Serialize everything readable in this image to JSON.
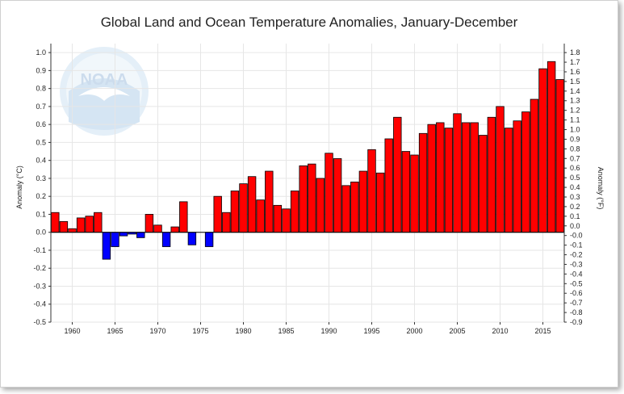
{
  "chart_data": {
    "type": "bar",
    "title": "Global Land and Ocean Temperature Anomalies, January-December",
    "ylabel_left": "Anomaly (°C)",
    "ylabel_right": "Anomaly (°F)",
    "ylim_left": [
      -0.5,
      1.05
    ],
    "ylim_right": [
      -0.9,
      1.89
    ],
    "left_ticks": [
      "1.0",
      "0.9",
      "0.8",
      "0.7",
      "0.6",
      "0.5",
      "0.4",
      "0.3",
      "0.2",
      "0.1",
      "0.0",
      "-0.1",
      "-0.2",
      "-0.3",
      "-0.4",
      "-0.5"
    ],
    "right_ticks": [
      "1.8",
      "1.7",
      "1.6",
      "1.5",
      "1.4",
      "1.3",
      "1.2",
      "1.1",
      "1.0",
      "0.9",
      "0.8",
      "0.7",
      "0.6",
      "0.5",
      "0.4",
      "0.3",
      "0.2",
      "0.1",
      "0.0",
      "-0.0",
      "-0.1",
      "-0.2",
      "-0.3",
      "-0.4",
      "-0.5",
      "-0.6",
      "-0.7",
      "-0.8",
      "-0.9"
    ],
    "x_ticks": [
      "1960",
      "1965",
      "1970",
      "1975",
      "1980",
      "1985",
      "1990",
      "1995",
      "2000",
      "2005",
      "2010",
      "2015"
    ],
    "positive_color": "#ff0000",
    "negative_color": "#0000ff",
    "grid": true,
    "years": [
      1958,
      1959,
      1960,
      1961,
      1962,
      1963,
      1964,
      1965,
      1966,
      1967,
      1968,
      1969,
      1970,
      1971,
      1972,
      1973,
      1974,
      1975,
      1976,
      1977,
      1978,
      1979,
      1980,
      1981,
      1982,
      1983,
      1984,
      1985,
      1986,
      1987,
      1988,
      1989,
      1990,
      1991,
      1992,
      1993,
      1994,
      1995,
      1996,
      1997,
      1998,
      1999,
      2000,
      2001,
      2002,
      2003,
      2004,
      2005,
      2006,
      2007,
      2008,
      2009,
      2010,
      2011,
      2012,
      2013,
      2014,
      2015,
      2016,
      2017
    ],
    "values": [
      0.11,
      0.06,
      0.02,
      0.08,
      0.09,
      0.11,
      -0.15,
      -0.08,
      -0.02,
      -0.01,
      -0.03,
      0.1,
      0.04,
      -0.08,
      0.03,
      0.17,
      -0.07,
      0.0,
      -0.08,
      0.2,
      0.11,
      0.23,
      0.27,
      0.31,
      0.18,
      0.34,
      0.15,
      0.13,
      0.23,
      0.37,
      0.38,
      0.3,
      0.44,
      0.41,
      0.26,
      0.28,
      0.34,
      0.46,
      0.33,
      0.52,
      0.64,
      0.45,
      0.43,
      0.55,
      0.6,
      0.61,
      0.58,
      0.66,
      0.61,
      0.61,
      0.54,
      0.64,
      0.7,
      0.58,
      0.62,
      0.67,
      0.74,
      0.91,
      0.95,
      0.85
    ]
  }
}
